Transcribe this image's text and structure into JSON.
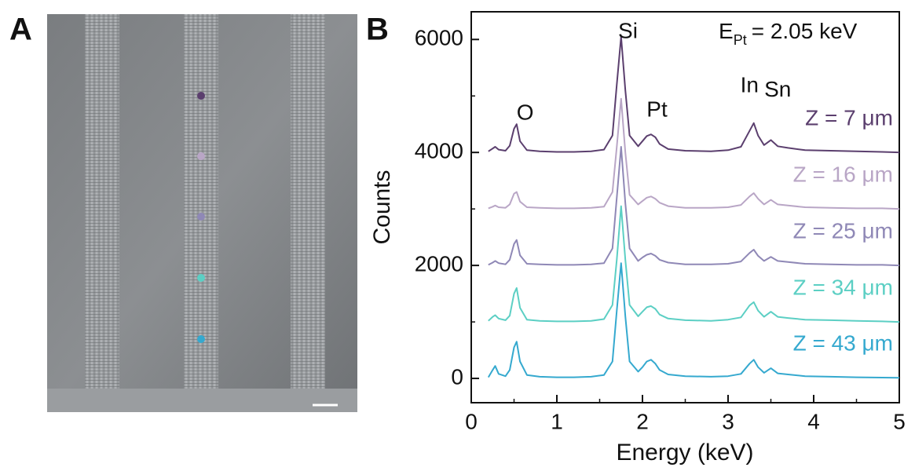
{
  "panel_labels": [
    "A",
    "B"
  ],
  "chart_data": {
    "type": "line",
    "x_label": "Energy (keV)",
    "y_label": "Counts",
    "xlim": [
      0,
      5
    ],
    "xticks": [
      0,
      1,
      2,
      3,
      4,
      5
    ],
    "xminor_ticks": [
      0.5,
      1.5,
      2.5,
      3.5,
      4.5
    ],
    "ylim": [
      -430,
      6490
    ],
    "yticks": [
      0,
      2000,
      4000,
      6000
    ],
    "yminor_ticks": [
      1000,
      3000,
      5000
    ],
    "annotations": [
      "O",
      "Si",
      "Pt",
      "In",
      "Sn"
    ],
    "energy_note": {
      "symbol": "E",
      "subscript": "Pt",
      "text": "= 2.05 keV"
    },
    "x": [
      0.2,
      0.25,
      0.28,
      0.32,
      0.4,
      0.45,
      0.5,
      0.53,
      0.57,
      0.65,
      0.8,
      1.0,
      1.2,
      1.4,
      1.55,
      1.65,
      1.7,
      1.75,
      1.8,
      1.85,
      1.95,
      2.0,
      2.05,
      2.1,
      2.15,
      2.2,
      2.3,
      2.5,
      2.8,
      3.0,
      3.15,
      3.25,
      3.3,
      3.35,
      3.42,
      3.5,
      3.58,
      3.7,
      3.9,
      4.2,
      4.5,
      4.8,
      5.0
    ],
    "series": [
      {
        "name": "Z = 7 μm",
        "color": "#5b3f6e",
        "values": [
          4020,
          4070,
          4100,
          4050,
          4030,
          4120,
          4420,
          4500,
          4200,
          4040,
          4020,
          4010,
          4010,
          4020,
          4050,
          4300,
          5200,
          6050,
          5100,
          4300,
          4110,
          4200,
          4290,
          4320,
          4270,
          4150,
          4060,
          4030,
          4020,
          4040,
          4100,
          4380,
          4520,
          4300,
          4130,
          4220,
          4110,
          4080,
          4040,
          4030,
          4020,
          4010,
          4000
        ]
      },
      {
        "name": "Z = 16 μm",
        "color": "#b9a6c6",
        "values": [
          3010,
          3040,
          3060,
          3030,
          3020,
          3080,
          3270,
          3300,
          3130,
          3030,
          3020,
          3010,
          3010,
          3020,
          3040,
          3300,
          4100,
          4950,
          4000,
          3250,
          3080,
          3140,
          3200,
          3220,
          3180,
          3110,
          3050,
          3020,
          3020,
          3030,
          3070,
          3220,
          3280,
          3180,
          3080,
          3160,
          3080,
          3060,
          3030,
          3020,
          3010,
          3010,
          3000
        ]
      },
      {
        "name": "Z = 25 μm",
        "color": "#8f88b6",
        "values": [
          2010,
          2050,
          2080,
          2040,
          2020,
          2100,
          2380,
          2450,
          2180,
          2030,
          2020,
          2010,
          2010,
          2020,
          2040,
          2300,
          3200,
          4100,
          3100,
          2300,
          2080,
          2140,
          2190,
          2210,
          2170,
          2100,
          2050,
          2020,
          2020,
          2030,
          2070,
          2220,
          2280,
          2170,
          2080,
          2150,
          2080,
          2060,
          2030,
          2020,
          2010,
          2010,
          2000
        ]
      },
      {
        "name": "Z = 34 μm",
        "color": "#5ccfc4",
        "values": [
          1020,
          1090,
          1120,
          1060,
          1030,
          1110,
          1500,
          1600,
          1250,
          1040,
          1020,
          1010,
          1010,
          1020,
          1050,
          1300,
          2100,
          3050,
          2100,
          1300,
          1100,
          1180,
          1260,
          1280,
          1230,
          1130,
          1060,
          1030,
          1020,
          1040,
          1080,
          1290,
          1350,
          1200,
          1090,
          1180,
          1090,
          1070,
          1040,
          1030,
          1020,
          1010,
          1000
        ]
      },
      {
        "name": "Z = 43 μm",
        "color": "#35a9cf",
        "values": [
          20,
          150,
          220,
          80,
          40,
          150,
          550,
          650,
          300,
          60,
          30,
          20,
          20,
          30,
          60,
          300,
          1200,
          2040,
          1100,
          300,
          120,
          200,
          300,
          330,
          260,
          150,
          70,
          40,
          30,
          40,
          80,
          260,
          330,
          200,
          100,
          180,
          90,
          70,
          40,
          30,
          20,
          15,
          10
        ]
      }
    ]
  }
}
